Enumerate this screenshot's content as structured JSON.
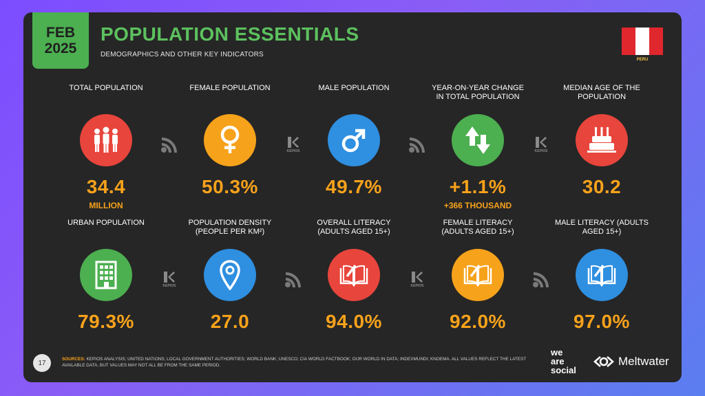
{
  "header": {
    "date_month": "FEB",
    "date_year": "2025",
    "title": "POPULATION ESSENTIALS",
    "subtitle": "DEMOGRAPHICS AND OTHER KEY INDICATORS",
    "country": "PERU"
  },
  "colors": {
    "red": "#e8453c",
    "orange": "#f7a21b",
    "blue": "#2f8fe0",
    "green": "#4caf50",
    "value": "#f7a21b"
  },
  "row1": [
    {
      "label": "TOTAL POPULATION",
      "value": "34.4",
      "unit": "MILLION",
      "icon": "people-icon",
      "color": "#e8453c"
    },
    {
      "label": "FEMALE POPULATION",
      "value": "50.3%",
      "unit": "",
      "icon": "female-icon",
      "color": "#f7a21b"
    },
    {
      "label": "MALE POPULATION",
      "value": "49.7%",
      "unit": "",
      "icon": "male-icon",
      "color": "#2f8fe0"
    },
    {
      "label": "YEAR-ON-YEAR CHANGE IN TOTAL POPULATION",
      "value": "+1.1%",
      "unit": "+366 THOUSAND",
      "icon": "up-down-arrows-icon",
      "color": "#4caf50"
    },
    {
      "label": "MEDIAN AGE OF THE POPULATION",
      "value": "30.2",
      "unit": "",
      "icon": "birthday-cake-icon",
      "color": "#e8453c"
    }
  ],
  "row2": [
    {
      "label": "URBAN POPULATION",
      "value": "79.3%",
      "icon": "building-icon",
      "color": "#4caf50"
    },
    {
      "label": "POPULATION DENSITY (PEOPLE PER KM²)",
      "value": "27.0",
      "icon": "map-pin-icon",
      "color": "#2f8fe0"
    },
    {
      "label": "OVERALL LITERACY (ADULTS AGED 15+)",
      "value": "94.0%",
      "icon": "book-pen-icon",
      "color": "#e8453c"
    },
    {
      "label": "FEMALE LITERACY (ADULTS AGED 15+)",
      "value": "92.0%",
      "icon": "book-pen-icon",
      "color": "#f7a21b"
    },
    {
      "label": "MALE LITERACY (ADULTS AGED 15+)",
      "value": "97.0%",
      "icon": "book-pen-icon",
      "color": "#2f8fe0"
    }
  ],
  "footer": {
    "page_number": "17",
    "sources_label": "SOURCES:",
    "sources_text": "KEPIOS ANALYSIS; UNITED NATIONS; LOCAL GOVERNMENT AUTHORITIES; WORLD BANK; UNESCO; CIA WORLD FACTBOOK; OUR WORLD IN DATA; INDEXMUNDI; KNOEMA. ALL VALUES REFLECT THE LATEST AVAILABLE DATA, BUT VALUES MAY NOT ALL BE FROM THE SAME PERIOD.",
    "brand1_line1": "we",
    "brand1_line2": "are",
    "brand1_line3": "social",
    "brand2": "Meltwater",
    "kepios": "KEPIOS"
  }
}
